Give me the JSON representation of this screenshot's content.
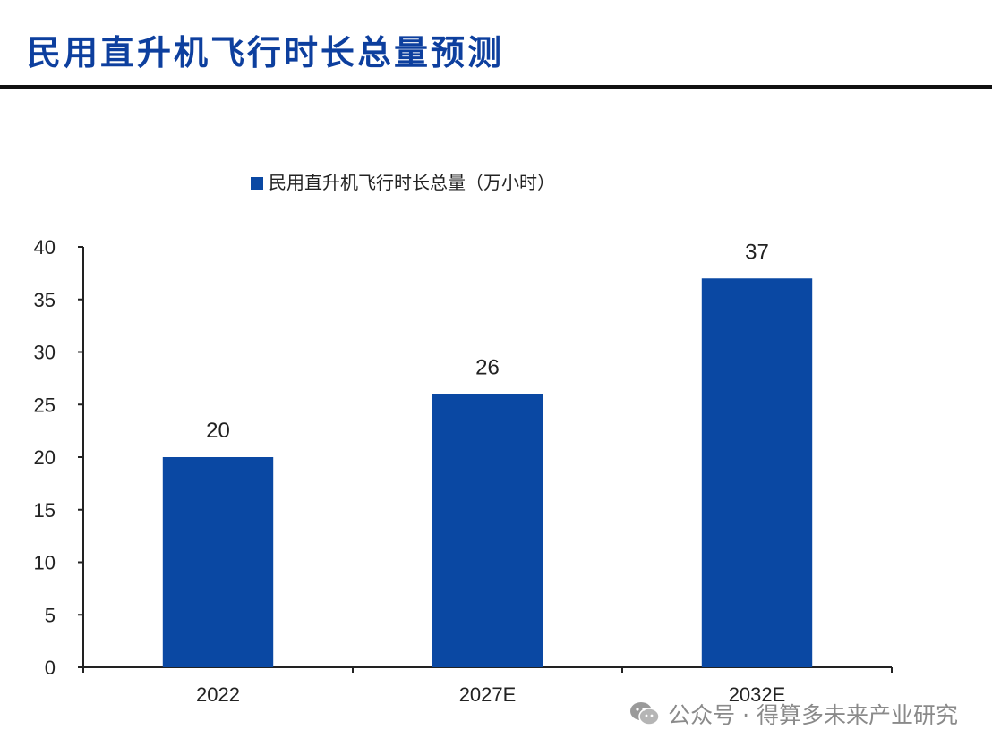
{
  "page": {
    "title": "民用直升机飞行时长总量预测",
    "title_color": "#0d3f9e"
  },
  "chart_data": {
    "type": "bar",
    "categories": [
      "2022",
      "2027E",
      "2032E"
    ],
    "series": [
      {
        "name": "民用直升机飞行时长总量（万小时）",
        "values": [
          20,
          26,
          37
        ],
        "data_labels": [
          "20",
          "26",
          "37"
        ],
        "color": "#0a48a3"
      }
    ],
    "title": "",
    "xlabel": "",
    "ylabel": "",
    "ylim": [
      0,
      40
    ],
    "yticks": [
      "0",
      "5",
      "10",
      "15",
      "20",
      "25",
      "30",
      "35",
      "40"
    ],
    "grid": false,
    "legend_position": "top"
  },
  "watermark": {
    "icon": "wechat-icon",
    "text": "公众号 · 得算多未来产业研究",
    "color": "#8a8a8a"
  }
}
